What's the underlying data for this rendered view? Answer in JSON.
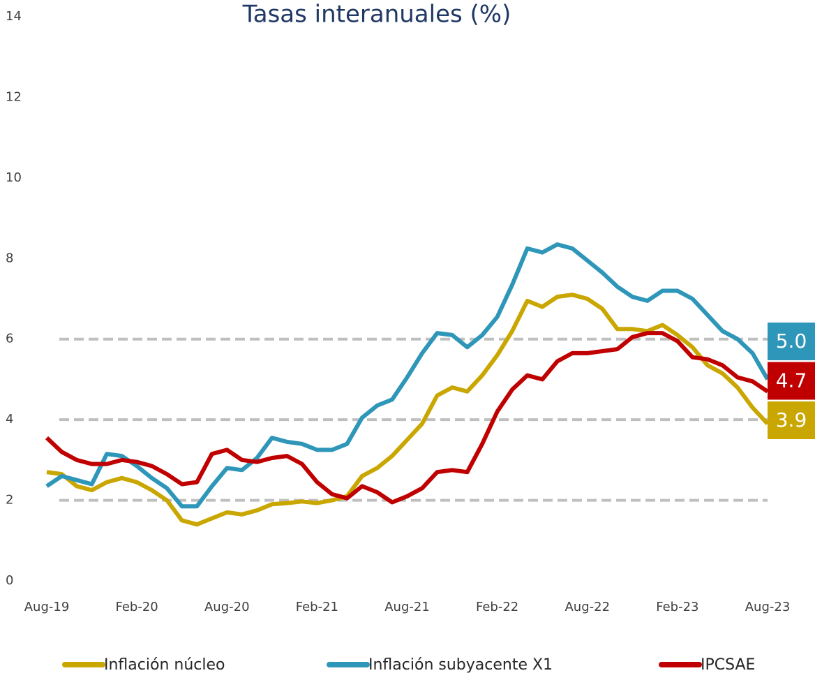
{
  "chart_data": {
    "type": "line",
    "title": "Tasas interanuales (%)",
    "categories": [
      "Aug-19",
      null,
      null,
      null,
      null,
      null,
      "Feb-20",
      null,
      null,
      null,
      null,
      null,
      "Aug-20",
      null,
      null,
      null,
      null,
      null,
      "Feb-21",
      null,
      null,
      null,
      null,
      null,
      "Aug-21",
      null,
      null,
      null,
      null,
      null,
      "Feb-22",
      null,
      null,
      null,
      null,
      null,
      "Aug-22",
      null,
      null,
      null,
      null,
      null,
      "Feb-23",
      null,
      null,
      null,
      null,
      null,
      "Aug-23"
    ],
    "series": [
      {
        "name": "Inflación núcleo",
        "color": "#c9a600",
        "end_label": "3.9",
        "values": [
          2.7,
          2.65,
          2.35,
          2.25,
          2.45,
          2.55,
          2.45,
          2.25,
          2.0,
          1.5,
          1.4,
          1.55,
          1.7,
          1.65,
          1.75,
          1.9,
          1.93,
          1.97,
          1.93,
          2.0,
          2.1,
          2.6,
          2.8,
          3.1,
          3.5,
          3.9,
          4.6,
          4.8,
          4.7,
          5.1,
          5.6,
          6.2,
          6.95,
          6.8,
          7.05,
          7.1,
          7.0,
          6.75,
          6.25,
          6.25,
          6.2,
          6.35,
          6.1,
          5.8,
          5.35,
          5.15,
          4.8,
          4.3,
          3.9
        ]
      },
      {
        "name": "Inflación subyacente X1",
        "color": "#2e96b8",
        "end_label": "5.0",
        "values": [
          2.35,
          2.6,
          2.5,
          2.4,
          3.15,
          3.1,
          2.85,
          2.55,
          2.3,
          1.85,
          1.85,
          2.35,
          2.8,
          2.75,
          3.05,
          3.55,
          3.45,
          3.4,
          3.25,
          3.25,
          3.4,
          4.05,
          4.35,
          4.5,
          5.05,
          5.65,
          6.15,
          6.1,
          5.8,
          6.1,
          6.55,
          7.35,
          8.25,
          8.15,
          8.35,
          8.25,
          7.95,
          7.65,
          7.3,
          7.05,
          6.95,
          7.2,
          7.2,
          7.0,
          6.6,
          6.2,
          6.0,
          5.65,
          5.0
        ]
      },
      {
        "name": "IPCSAE",
        "color": "#c00000",
        "end_label": "4.7",
        "values": [
          3.55,
          3.2,
          3.0,
          2.9,
          2.9,
          3.0,
          2.95,
          2.85,
          2.65,
          2.4,
          2.45,
          3.15,
          3.25,
          3.0,
          2.95,
          3.05,
          3.1,
          2.9,
          2.45,
          2.15,
          2.05,
          2.35,
          2.2,
          1.95,
          2.1,
          2.3,
          2.7,
          2.75,
          2.7,
          3.4,
          4.2,
          4.75,
          5.1,
          5.0,
          5.45,
          5.65,
          5.65,
          5.7,
          5.75,
          6.05,
          6.15,
          6.15,
          5.95,
          5.55,
          5.5,
          5.35,
          5.05,
          4.95,
          4.7
        ]
      }
    ],
    "ylim": [
      0,
      14
    ],
    "yticks": [
      0,
      2,
      4,
      6,
      8,
      10,
      12,
      14
    ],
    "gridlines": [
      2,
      4,
      6
    ],
    "legend": "bottom"
  }
}
